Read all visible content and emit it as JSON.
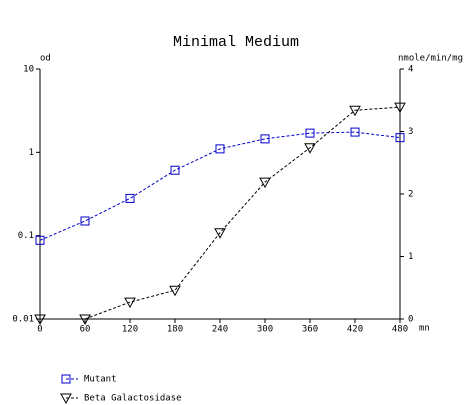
{
  "chart_data": {
    "type": "line",
    "title": "Minimal Medium",
    "ylabel": "od",
    "y2label": "nmole/min/mg",
    "xlabel": "mn",
    "x": [
      0,
      60,
      120,
      180,
      240,
      300,
      360,
      420,
      480
    ],
    "xlim": [
      0,
      480
    ],
    "xticks": [
      0,
      60,
      120,
      180,
      240,
      300,
      360,
      420,
      480
    ],
    "ylim": [
      0.01,
      10
    ],
    "yticks": [
      0.01,
      0.1,
      1,
      10
    ],
    "ylog": true,
    "y2lim": [
      0,
      4
    ],
    "y2ticks": [
      0,
      1,
      2,
      3,
      4
    ],
    "series": [
      {
        "name": "Mutant",
        "color": "#0000cc",
        "marker": "square",
        "values": [
          0.088,
          0.15,
          0.28,
          0.61,
          1.1,
          1.45,
          1.7,
          1.75,
          1.5
        ]
      },
      {
        "name": "Beta Galactosidase",
        "color": "#000000",
        "marker": "triangle-down",
        "axis": "y2",
        "values": [
          0,
          0,
          0.27,
          0.46,
          1.38,
          2.19,
          2.74,
          3.34,
          3.39
        ]
      }
    ]
  }
}
